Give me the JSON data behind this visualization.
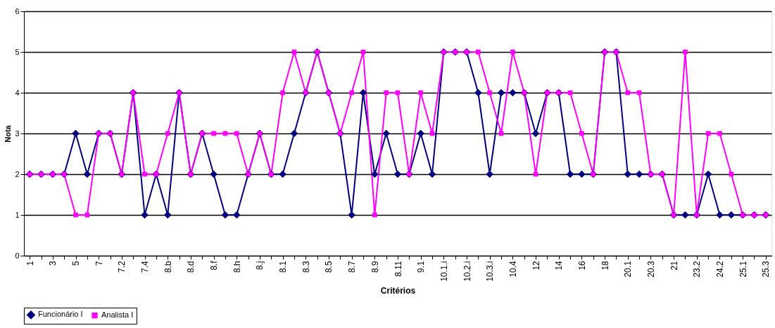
{
  "chart_data": {
    "type": "line",
    "xlabel": "Critérios",
    "ylabel": "Nota",
    "categories": [
      "1",
      null,
      "3",
      null,
      "5",
      null,
      "7",
      null,
      "7.2",
      null,
      "7.4",
      null,
      "8.b",
      null,
      "8.d",
      null,
      "8.f",
      null,
      "8.h",
      null,
      "8.j",
      null,
      "8.1",
      null,
      "8.3",
      null,
      "8.5",
      null,
      "8.7",
      null,
      "8.9",
      null,
      "8.11",
      null,
      "9.1",
      null,
      "10.1.i",
      null,
      "10.2.i",
      null,
      "10.3.i",
      null,
      "10.4",
      null,
      "12",
      null,
      "14",
      null,
      "16",
      null,
      "18",
      null,
      "20.1",
      null,
      "20.3",
      null,
      "21",
      null,
      "23.2",
      null,
      "24.2",
      null,
      "25.1",
      null,
      "25.3"
    ],
    "series": [
      {
        "name": "Funcionário I",
        "color": "#000080",
        "marker": "diamond",
        "values": [
          2,
          2,
          2,
          2,
          3,
          2,
          3,
          3,
          2,
          4,
          1,
          2,
          1,
          4,
          2,
          3,
          2,
          1,
          1,
          2,
          3,
          2,
          2,
          3,
          4,
          5,
          4,
          3,
          1,
          4,
          2,
          3,
          2,
          2,
          3,
          2,
          5,
          5,
          5,
          4,
          2,
          4,
          4,
          4,
          3,
          4,
          4,
          2,
          2,
          2,
          5,
          5,
          2,
          2,
          2,
          2,
          1,
          1,
          1,
          2,
          1,
          1,
          1,
          1,
          1
        ]
      },
      {
        "name": "Analista I",
        "color": "#ff00ff",
        "marker": "square",
        "values": [
          2,
          2,
          2,
          2,
          1,
          1,
          3,
          3,
          2,
          4,
          2,
          2,
          3,
          4,
          2,
          3,
          3,
          3,
          3,
          2,
          3,
          2,
          4,
          5,
          4,
          5,
          4,
          3,
          4,
          5,
          1,
          4,
          4,
          2,
          4,
          3,
          5,
          5,
          5,
          5,
          4,
          3,
          5,
          4,
          2,
          4,
          4,
          4,
          3,
          2,
          5,
          5,
          4,
          4,
          2,
          2,
          1,
          5,
          1,
          3,
          3,
          2,
          1,
          1,
          1
        ]
      }
    ],
    "ylim": [
      0,
      6
    ],
    "yticks": [
      0,
      1,
      2,
      3,
      4,
      5,
      6
    ],
    "grid": "y",
    "legend": "bottom",
    "line_style": "solid"
  }
}
